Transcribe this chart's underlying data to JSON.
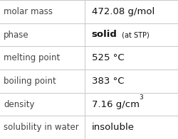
{
  "rows": [
    {
      "label": "molar mass",
      "value": "472.08 g/mol",
      "type": "plain"
    },
    {
      "label": "phase",
      "value": "solid",
      "type": "phase",
      "sub": " (at STP)"
    },
    {
      "label": "melting point",
      "value": "525 °C",
      "type": "plain"
    },
    {
      "label": "boiling point",
      "value": "383 °C",
      "type": "plain"
    },
    {
      "label": "density",
      "value": "7.16 g/cm",
      "type": "super",
      "super": "3"
    },
    {
      "label": "solubility in water",
      "value": "insoluble",
      "type": "plain"
    }
  ],
  "bg_color": "#ffffff",
  "line_color": "#c8c8c8",
  "label_fontsize": 8.5,
  "value_fontsize": 9.5,
  "sub_fontsize": 7.0,
  "super_fontsize": 6.5,
  "col_split": 0.475,
  "label_color": "#444444",
  "value_color": "#111111",
  "fig_width": 2.5,
  "fig_height": 1.96,
  "dpi": 100
}
